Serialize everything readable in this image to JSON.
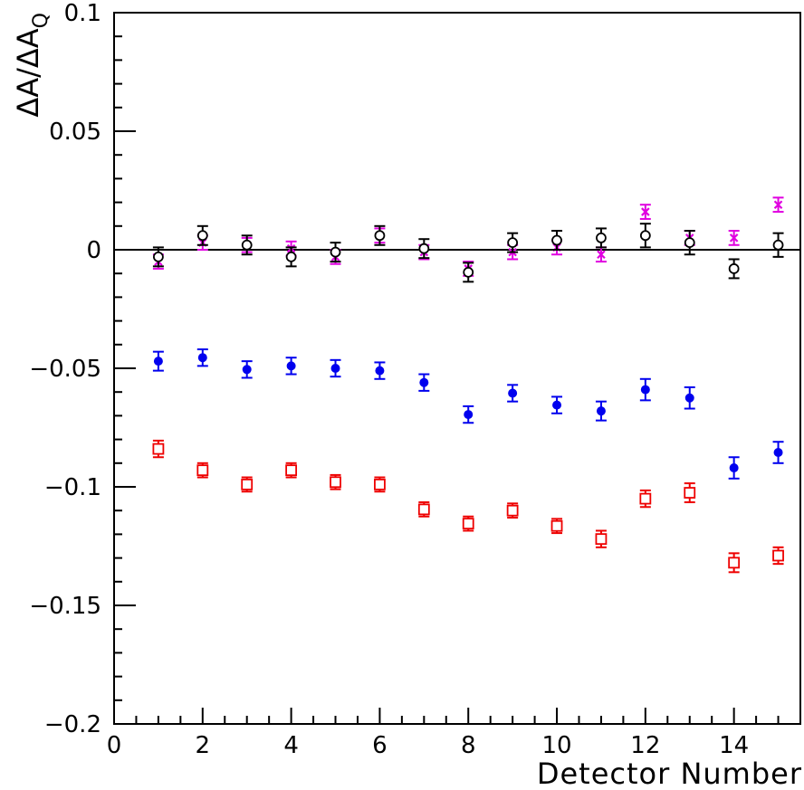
{
  "chart_data": {
    "type": "scatter",
    "xlabel": "Detector Number",
    "ylabel": {
      "main": "ΔA/ΔA",
      "subscript": "Q"
    },
    "xlim": [
      0,
      15.5
    ],
    "ylim": [
      -0.2,
      0.1
    ],
    "x_ticks": [
      {
        "value": 0,
        "label": "0"
      },
      {
        "value": 2,
        "label": "2"
      },
      {
        "value": 4,
        "label": "4"
      },
      {
        "value": 6,
        "label": "6"
      },
      {
        "value": 8,
        "label": "8"
      },
      {
        "value": 10,
        "label": "10"
      },
      {
        "value": 12,
        "label": "12"
      },
      {
        "value": 14,
        "label": "14"
      }
    ],
    "y_ticks": [
      {
        "value": 0.1,
        "label": "0.1"
      },
      {
        "value": 0.05,
        "label": "0.05"
      },
      {
        "value": 0,
        "label": "0"
      },
      {
        "value": -0.05,
        "label": "−0.05"
      },
      {
        "value": -0.1,
        "label": "−0.1"
      },
      {
        "value": -0.15,
        "label": "−0.15"
      },
      {
        "value": -0.2,
        "label": "−0.2"
      }
    ],
    "x_minor_step": 0.5,
    "y_minor_step": 0.01,
    "zero_line": true,
    "grid": false,
    "series": [
      {
        "marker": "cross",
        "color": "#e000e0",
        "x": [
          1,
          2,
          3,
          4,
          5,
          6,
          7,
          8,
          9,
          10,
          11,
          12,
          13,
          14,
          15
        ],
        "y": [
          -0.005,
          0.003,
          0.002,
          0.0005,
          -0.003,
          0.006,
          -0.001,
          -0.008,
          -0.001,
          0.001,
          -0.002,
          0.016,
          0.005,
          0.005,
          0.019
        ],
        "err": [
          0.003,
          0.003,
          0.003,
          0.003,
          0.003,
          0.003,
          0.003,
          0.003,
          0.003,
          0.003,
          0.003,
          0.003,
          0.003,
          0.003,
          0.003
        ]
      },
      {
        "marker": "open-circle",
        "color": "#000000",
        "x": [
          1,
          2,
          3,
          4,
          5,
          6,
          7,
          8,
          9,
          10,
          11,
          12,
          13,
          14,
          15
        ],
        "y": [
          -0.003,
          0.006,
          0.002,
          -0.003,
          -0.001,
          0.006,
          0.0005,
          -0.0095,
          0.003,
          0.004,
          0.005,
          0.006,
          0.003,
          -0.008,
          0.002
        ],
        "err": [
          0.004,
          0.004,
          0.004,
          0.004,
          0.004,
          0.004,
          0.004,
          0.004,
          0.004,
          0.004,
          0.004,
          0.005,
          0.005,
          0.004,
          0.005
        ]
      },
      {
        "marker": "filled-circle",
        "color": "#0000ee",
        "x": [
          1,
          2,
          3,
          4,
          5,
          6,
          7,
          8,
          9,
          10,
          11,
          12,
          13,
          14,
          15
        ],
        "y": [
          -0.047,
          -0.0455,
          -0.0505,
          -0.049,
          -0.05,
          -0.051,
          -0.056,
          -0.0695,
          -0.0605,
          -0.0655,
          -0.068,
          -0.059,
          -0.0625,
          -0.092,
          -0.0855
        ],
        "err": [
          0.004,
          0.0035,
          0.0035,
          0.0035,
          0.0035,
          0.0035,
          0.0035,
          0.0035,
          0.0035,
          0.0035,
          0.004,
          0.0045,
          0.0045,
          0.0045,
          0.0045
        ]
      },
      {
        "marker": "open-square",
        "color": "#ee0000",
        "x": [
          1,
          2,
          3,
          4,
          5,
          6,
          7,
          8,
          9,
          10,
          11,
          12,
          13,
          14,
          15
        ],
        "y": [
          -0.084,
          -0.093,
          -0.099,
          -0.093,
          -0.098,
          -0.099,
          -0.1095,
          -0.1155,
          -0.11,
          -0.1165,
          -0.122,
          -0.105,
          -0.1025,
          -0.132,
          -0.129
        ],
        "err": [
          0.0035,
          0.003,
          0.003,
          0.003,
          0.003,
          0.003,
          0.003,
          0.003,
          0.003,
          0.003,
          0.0035,
          0.0035,
          0.004,
          0.004,
          0.0035
        ]
      }
    ]
  }
}
